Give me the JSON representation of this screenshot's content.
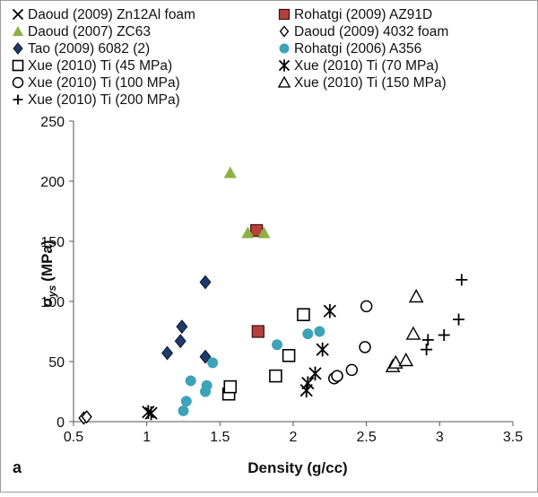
{
  "chart_data": {
    "type": "scatter",
    "panel_label": "a",
    "xlabel": "Density (g/cc)",
    "ylabel_main": "σ",
    "ylabel_sub": "ys",
    "ylabel_unit": "(MPa)",
    "xlim": [
      0.5,
      3.5
    ],
    "ylim": [
      0,
      250
    ],
    "x_ticks": [
      "0.5",
      "1",
      "1.5",
      "2",
      "2.5",
      "3",
      "3.5"
    ],
    "y_ticks": [
      "0",
      "50",
      "100",
      "150",
      "200",
      "250"
    ],
    "grid": false,
    "legend_position": "top",
    "series": [
      {
        "name": "Daoud (2009) Zn12Al foam",
        "marker": "x",
        "color": "#000000",
        "points": []
      },
      {
        "name": "Rohatgi (2009) AZ91D",
        "marker": "square-filled",
        "color": "#b5403c",
        "points": [
          [
            1.75,
            159
          ],
          [
            1.76,
            75
          ]
        ]
      },
      {
        "name": "Daoud (2007) ZC63",
        "marker": "triangle-filled",
        "color": "#8db045",
        "points": [
          [
            1.57,
            207
          ],
          [
            1.69,
            157
          ],
          [
            1.8,
            157
          ]
        ]
      },
      {
        "name": "Daoud (2009) 4032 foam",
        "marker": "diamond-open",
        "color": "#000000",
        "points": [
          [
            0.57,
            3
          ],
          [
            0.59,
            4
          ]
        ]
      },
      {
        "name": "Tao (2009) 6082 (2)",
        "marker": "diamond-filled",
        "color": "#1f3b6b",
        "points": [
          [
            1.14,
            57
          ],
          [
            1.23,
            67
          ],
          [
            1.24,
            79
          ],
          [
            1.4,
            116
          ],
          [
            1.4,
            54
          ]
        ]
      },
      {
        "name": "Rohatgi (2006) A356",
        "marker": "circle-filled",
        "color": "#3fa3b8",
        "points": [
          [
            1.25,
            9
          ],
          [
            1.27,
            17
          ],
          [
            1.3,
            34
          ],
          [
            1.4,
            25
          ],
          [
            1.41,
            30
          ],
          [
            1.45,
            49
          ],
          [
            1.89,
            64
          ],
          [
            2.1,
            73
          ],
          [
            2.18,
            75
          ]
        ]
      },
      {
        "name": "Xue (2010) Ti (45 MPa)",
        "marker": "square-open",
        "color": "#000000",
        "points": [
          [
            1.56,
            23
          ],
          [
            1.57,
            29
          ],
          [
            1.88,
            38
          ],
          [
            1.97,
            55
          ],
          [
            2.07,
            89
          ]
        ]
      },
      {
        "name": "Xue (2010) Ti (70 MPa)",
        "marker": "asterisk",
        "color": "#000000",
        "points": [
          [
            1.01,
            8
          ],
          [
            1.03,
            7
          ],
          [
            2.09,
            26
          ],
          [
            2.1,
            32
          ],
          [
            2.15,
            40
          ],
          [
            2.2,
            60
          ],
          [
            2.25,
            92
          ]
        ]
      },
      {
        "name": "Xue (2010) Ti (100 MPa)",
        "marker": "circle-open",
        "color": "#000000",
        "points": [
          [
            2.28,
            36
          ],
          [
            2.3,
            38
          ],
          [
            2.4,
            43
          ],
          [
            2.49,
            62
          ],
          [
            2.5,
            96
          ]
        ]
      },
      {
        "name": "Xue (2010) Ti (150 MPa)",
        "marker": "triangle-open",
        "color": "#000000",
        "points": [
          [
            2.68,
            46
          ],
          [
            2.7,
            49
          ],
          [
            2.77,
            51
          ],
          [
            2.82,
            73
          ],
          [
            2.84,
            104
          ]
        ]
      },
      {
        "name": "Xue (2010) Ti (200 MPa)",
        "marker": "plus",
        "color": "#000000",
        "points": [
          [
            2.91,
            60
          ],
          [
            2.92,
            68
          ],
          [
            3.03,
            72
          ],
          [
            3.13,
            85
          ],
          [
            3.15,
            118
          ]
        ]
      }
    ]
  }
}
